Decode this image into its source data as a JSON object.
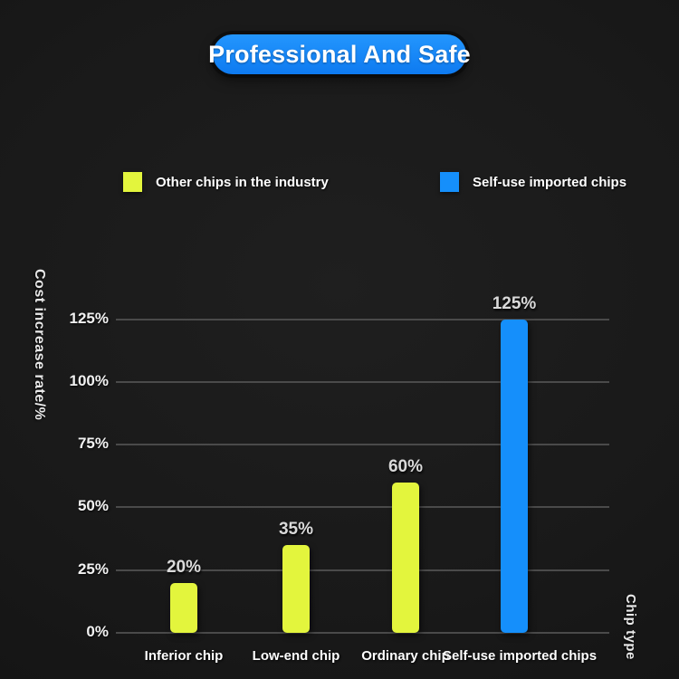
{
  "title": {
    "label": "Professional And Safe"
  },
  "legend": [
    {
      "label": "Other chips in the industry",
      "color": "#e3f53d"
    },
    {
      "label": "Self-use imported chips",
      "color": "#158ffb"
    }
  ],
  "chart_data": {
    "type": "bar",
    "title": "Professional And Safe",
    "categories": [
      "Inferior chip",
      "Low-end chip",
      "Ordinary chip",
      "Self-use imported chips"
    ],
    "values": [
      20,
      35,
      60,
      125
    ],
    "data_labels": [
      "20%",
      "35%",
      "60%",
      "125%"
    ],
    "bar_colors": [
      "#e3f53d",
      "#e3f53d",
      "#e3f53d",
      "#158ffb"
    ],
    "series_of_bars": [
      "Other chips in the industry",
      "Other chips in the industry",
      "Other chips in the industry",
      "Self-use imported chips"
    ],
    "xlabel": "Chip type",
    "ylabel": "Cost increase rate/%",
    "yticks": [
      0,
      25,
      50,
      75,
      100,
      125
    ],
    "ytick_labels": [
      "0%",
      "25%",
      "50%",
      "75%",
      "100%",
      "125%"
    ],
    "ylim": [
      0,
      135
    ],
    "grid": true,
    "legend_position": "top",
    "colors": {
      "background": "#181818",
      "gridline": "#4a4a4a",
      "tick_text": "#f1f1f1",
      "value_text": "#dadada",
      "category_text": "#ffffff",
      "title_pill": "#1787f7",
      "title_text": "#ffffff"
    }
  }
}
